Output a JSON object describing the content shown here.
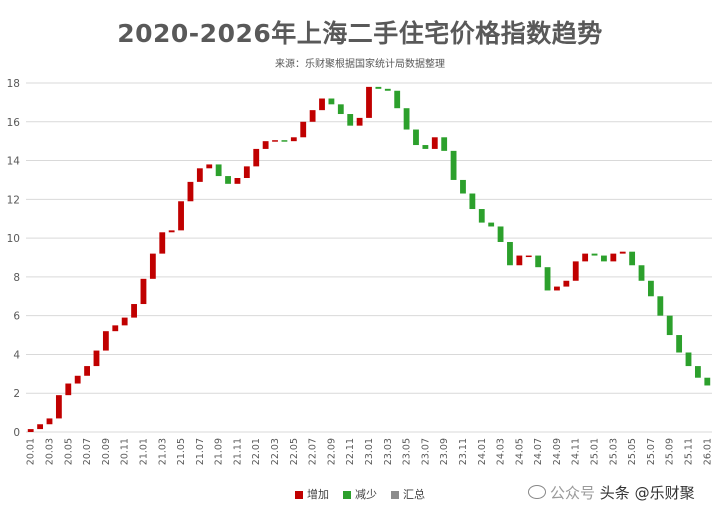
{
  "chart_data": {
    "type": "waterfall",
    "title": "2020-2026年上海二手住宅价格指数趋势",
    "subtitle": "来源：乐财聚根据国家统计局数据整理",
    "ylim": [
      0,
      18
    ],
    "yticks": [
      "0",
      "2",
      "4",
      "6",
      "8",
      "10",
      "12",
      "14",
      "16",
      "18"
    ],
    "grid": true,
    "legend_position": "bottom",
    "legend": [
      {
        "label": "增加",
        "color": "#c00000"
      },
      {
        "label": "减少",
        "color": "#2ca02c"
      },
      {
        "label": "汇总",
        "color": "#8c8c8c"
      }
    ],
    "x_tick_labels": [
      "20.01",
      "20.03",
      "20.05",
      "20.07",
      "20.09",
      "20.11",
      "21.01",
      "21.03",
      "21.05",
      "21.07",
      "21.09",
      "21.11",
      "22.01",
      "22.03",
      "22.05",
      "22.07",
      "22.09",
      "22.11",
      "23.01",
      "23.03",
      "23.05",
      "23.07",
      "23.09",
      "23.11",
      "24.01",
      "24.03",
      "24.05",
      "24.07",
      "24.09",
      "24.11",
      "25.01",
      "25.03",
      "25.05",
      "25.07",
      "25.09",
      "25.11",
      "26.01"
    ],
    "categories": [
      "20.01",
      "20.02",
      "20.03",
      "20.04",
      "20.05",
      "20.06",
      "20.07",
      "20.08",
      "20.09",
      "20.10",
      "20.11",
      "20.12",
      "21.01",
      "21.02",
      "21.03",
      "21.04",
      "21.05",
      "21.06",
      "21.07",
      "21.08",
      "21.09",
      "21.10",
      "21.11",
      "21.12",
      "22.01",
      "22.02",
      "22.03",
      "22.04",
      "22.05",
      "22.06",
      "22.07",
      "22.08",
      "22.09",
      "22.10",
      "22.11",
      "22.12",
      "23.01",
      "23.02",
      "23.03",
      "23.04",
      "23.05",
      "23.06",
      "23.07",
      "23.08",
      "23.09",
      "23.10",
      "23.11",
      "23.12",
      "24.01",
      "24.02",
      "24.03",
      "24.04",
      "24.05",
      "24.06",
      "24.07",
      "24.08",
      "24.09",
      "24.10",
      "24.11",
      "24.12",
      "25.01",
      "25.02",
      "25.03",
      "25.04",
      "25.05",
      "25.06",
      "25.07",
      "25.08",
      "25.09",
      "25.10",
      "25.11",
      "25.12",
      "26.01"
    ],
    "cumulative_values": [
      0.15,
      0.4,
      0.7,
      1.9,
      2.5,
      2.9,
      3.4,
      4.2,
      5.2,
      5.5,
      5.9,
      6.6,
      7.9,
      9.2,
      10.3,
      10.4,
      11.9,
      12.9,
      13.6,
      13.8,
      13.2,
      12.8,
      13.1,
      13.7,
      14.6,
      15.0,
      15.05,
      15.0,
      15.2,
      16.0,
      16.6,
      17.2,
      16.9,
      16.4,
      15.8,
      16.2,
      17.8,
      17.7,
      17.6,
      16.7,
      15.6,
      14.8,
      14.6,
      15.2,
      14.5,
      13.0,
      12.3,
      11.5,
      10.8,
      10.6,
      9.8,
      8.6,
      9.1,
      9.1,
      8.5,
      7.3,
      7.5,
      7.8,
      8.8,
      9.2,
      9.1,
      8.8,
      9.2,
      9.3,
      8.6,
      7.8,
      7.0,
      6.0,
      5.0,
      4.1,
      3.4,
      2.8,
      2.4
    ]
  },
  "watermark": {
    "prefix": "公众号",
    "text": "头条 @乐财聚",
    "faint": "乐财聚"
  }
}
